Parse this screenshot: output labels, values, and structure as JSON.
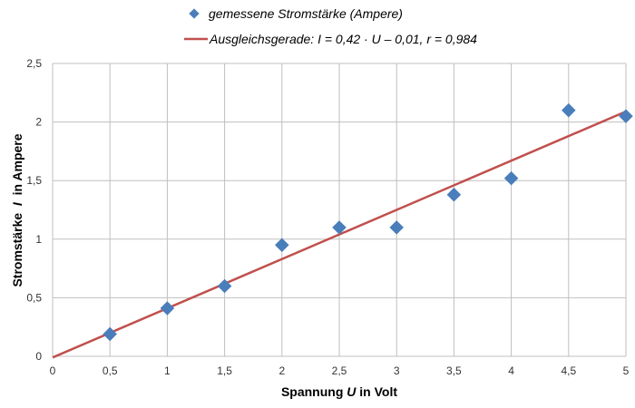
{
  "chart_data": {
    "type": "scatter",
    "title": "",
    "xlabel": {
      "pre": "Spannung ",
      "var": "U",
      "post": " in Volt"
    },
    "ylabel": {
      "pre": "Stromstärke  ",
      "var": "I",
      "post": "  in Ampere"
    },
    "xlim": [
      0,
      5
    ],
    "ylim": [
      0,
      2.5
    ],
    "grid": true,
    "legend_position": "top",
    "x_ticks": [
      "0",
      "0,5",
      "1",
      "1,5",
      "2",
      "2,5",
      "3",
      "3,5",
      "4",
      "4,5",
      "5"
    ],
    "y_ticks": [
      "0",
      "0,5",
      "1",
      "1,5",
      "2",
      "2,5"
    ],
    "series": [
      {
        "name": "gemessene Stromstärke (Ampere)",
        "type": "scatter",
        "color": "#4a7ebb",
        "x": [
          0.5,
          1,
          1.5,
          2,
          2.5,
          3,
          3.5,
          4,
          4.5,
          5
        ],
        "y": [
          0.19,
          0.41,
          0.6,
          0.95,
          1.1,
          1.1,
          1.38,
          1.52,
          2.1,
          2.05
        ]
      },
      {
        "name": "Ausgleichsgerade: I = 0,42 · U – 0,01, r = 0,984",
        "type": "line",
        "color": "#c0504d",
        "slope": 0.42,
        "intercept": -0.01,
        "r": 0.984
      }
    ]
  }
}
